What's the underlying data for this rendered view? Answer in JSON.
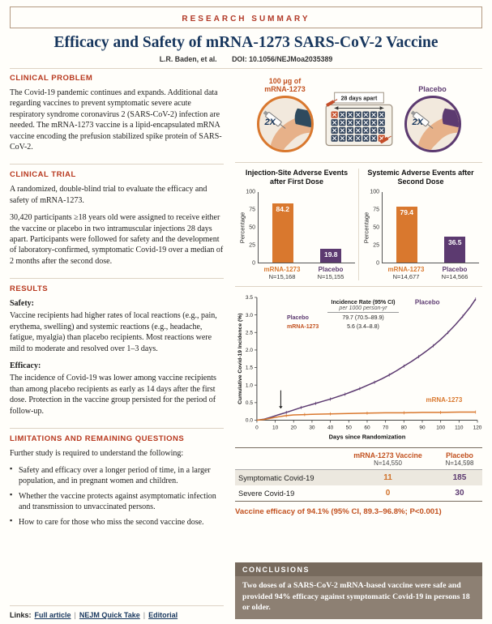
{
  "banner": "RESEARCH SUMMARY",
  "title": "Efficacy and Safety of mRNA-1273 SARS-CoV-2 Vaccine",
  "byline": "L.R. Baden, et al.",
  "doi": "DOI: 10.1056/NEJMoa2035389",
  "sections": {
    "clinical_problem": {
      "heading": "CLINICAL PROBLEM",
      "body": "The Covid-19 pandemic continues and expands. Additional data regarding vaccines to prevent symptomatic severe acute respiratory syndrome coronavirus 2 (SARS-CoV-2) infection are needed. The mRNA-1273 vaccine is a lipid-encapsulated mRNA vaccine encoding the prefusion stabilized spike protein of SARS-CoV-2."
    },
    "clinical_trial": {
      "heading": "CLINICAL TRIAL",
      "p1": "A randomized, double-blind trial to evaluate the efficacy and safety of mRNA-1273.",
      "p2": "30,420 participants ≥18 years old were assigned to receive either the vaccine or placebo in two intramuscular injections 28 days apart. Participants were followed for safety and the development of laboratory-confirmed, symptomatic Covid-19 over a median of 2 months after the second dose."
    },
    "results": {
      "heading": "RESULTS",
      "safety_label": "Safety:",
      "safety_body": "Vaccine recipients had higher rates of local reactions (e.g., pain, erythema, swelling) and systemic reactions (e.g., headache, fatigue, myalgia) than placebo recipients. Most reactions were mild to moderate and resolved over 1–3 days.",
      "efficacy_label": "Efficacy:",
      "efficacy_body": "The incidence of Covid-19 was lower among vaccine recipients than among placebo recipients as early as 14 days after the first dose. Protection in the vaccine group persisted for the period of follow-up."
    },
    "limitations": {
      "heading": "LIMITATIONS AND REMAINING QUESTIONS",
      "intro": "Further study is required to understand the following:",
      "items": [
        "Safety and efficacy over a longer period of time, in a larger population, and in pregnant women and children.",
        "Whether the vaccine protects against asymptomatic infection and transmission to unvaccinated persons.",
        "How to care for those who miss the second vaccine dose."
      ]
    },
    "links": {
      "label": "Links:",
      "items": [
        "Full article",
        "NEJM Quick Take",
        "Editorial"
      ]
    }
  },
  "illustration": {
    "vaccine_label": "100 μg of\nmRNA-1273",
    "dose_label": "2X",
    "calendar_label": "28 days apart",
    "placebo_label": "Placebo"
  },
  "chart_data": [
    {
      "type": "bar",
      "title": "Injection-Site Adverse Events after First Dose",
      "ylabel": "Percentage",
      "ylim": [
        0,
        100
      ],
      "yticks": [
        0,
        25,
        50,
        75,
        100
      ],
      "categories": [
        "mRNA-1273",
        "Placebo"
      ],
      "ns": [
        "N=15,168",
        "N=15,155"
      ],
      "values": [
        84.2,
        19.8
      ],
      "colors": [
        "#d9782e",
        "#5c3a70"
      ]
    },
    {
      "type": "bar",
      "title": "Systemic Adverse Events after Second Dose",
      "ylabel": "Percentage",
      "ylim": [
        0,
        100
      ],
      "yticks": [
        0,
        25,
        50,
        75,
        100
      ],
      "categories": [
        "mRNA-1273",
        "Placebo"
      ],
      "ns": [
        "N=14,677",
        "N=14,566"
      ],
      "values": [
        79.4,
        36.5
      ],
      "colors": [
        "#d9782e",
        "#5c3a70"
      ]
    },
    {
      "type": "line",
      "title": "",
      "xlabel": "Days since Randomization",
      "ylabel": "Cumulative Covid-19 Incidence (%)",
      "xlim": [
        0,
        120
      ],
      "ylim": [
        0,
        3.5
      ],
      "xticks": [
        0,
        10,
        20,
        30,
        40,
        50,
        60,
        70,
        80,
        90,
        100,
        110,
        120
      ],
      "yticks": [
        0,
        0.5,
        1.0,
        1.5,
        2.0,
        2.5,
        3.0,
        3.5
      ],
      "legend_title": "Incidence Rate (95% CI)",
      "legend_subtitle": "per 1000 person-yr",
      "arrow": [
        13,
        0.85,
        0.33
      ],
      "series": [
        {
          "name": "Placebo",
          "color": "#5c3a70",
          "rate": "79.7 (70.5–89.9)",
          "label_at": [
            86,
            3.3
          ],
          "x": [
            0,
            4,
            8,
            12,
            16,
            20,
            24,
            28,
            32,
            36,
            40,
            44,
            48,
            52,
            56,
            60,
            64,
            68,
            72,
            76,
            80,
            84,
            88,
            92,
            96,
            100,
            104,
            108,
            112,
            116,
            119
          ],
          "y": [
            0,
            0.03,
            0.09,
            0.16,
            0.22,
            0.29,
            0.36,
            0.42,
            0.48,
            0.54,
            0.6,
            0.67,
            0.74,
            0.82,
            0.9,
            0.99,
            1.08,
            1.18,
            1.29,
            1.41,
            1.54,
            1.67,
            1.81,
            1.96,
            2.12,
            2.3,
            2.5,
            2.72,
            2.96,
            3.22,
            3.45
          ]
        },
        {
          "name": "mRNA-1273",
          "color": "#d9782e",
          "rate": "5.6 (3.4–8.8)",
          "label_at": [
            92,
            0.52
          ],
          "x": [
            0,
            4,
            8,
            12,
            16,
            20,
            26,
            32,
            40,
            50,
            60,
            70,
            80,
            90,
            100,
            110,
            119
          ],
          "y": [
            0,
            0.02,
            0.06,
            0.1,
            0.13,
            0.15,
            0.16,
            0.17,
            0.18,
            0.19,
            0.2,
            0.21,
            0.21,
            0.22,
            0.22,
            0.23,
            0.23
          ]
        }
      ]
    }
  ],
  "table": {
    "col_headers": [
      {
        "name": "mRNA-1273 Vaccine",
        "n": "N=14,550"
      },
      {
        "name": "Placebo",
        "n": "N=14,598"
      }
    ],
    "rows": [
      {
        "label": "Symptomatic Covid-19",
        "vaccine": "11",
        "placebo": "185"
      },
      {
        "label": "Severe Covid-19",
        "vaccine": "0",
        "placebo": "30"
      }
    ]
  },
  "efficacy_statement": "Vaccine efficacy of 94.1% (95% CI, 89.3–96.8%; P<0.001)",
  "conclusions": {
    "heading": "CONCLUSIONS",
    "body": "Two doses of a SARS-CoV-2 mRNA-based vaccine were safe and provided 94% efficacy against symptomatic Covid-19 in persons 18 or older."
  },
  "colors": {
    "accent_red": "#b23a28",
    "heading_red": "#b8391f",
    "navy": "#17365d",
    "vaccine_orange": "#d9782e",
    "placebo_purple": "#5c3a70",
    "conclusions_bg": "#8d8073"
  }
}
